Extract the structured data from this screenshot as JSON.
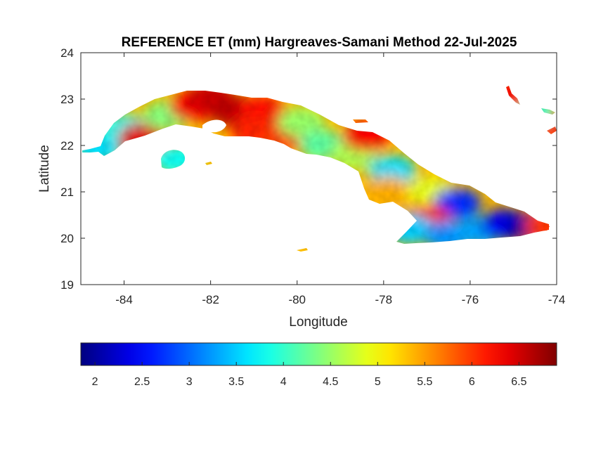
{
  "map": {
    "title": "REFERENCE ET (mm) Hargreaves-Samani Method  22-Jul-2025",
    "xlabel": "Longitude",
    "ylabel": "Latitude",
    "xlim": [
      -85,
      -74
    ],
    "ylim": [
      19,
      24
    ],
    "x_ticks": [
      {
        "value": -84,
        "label": "-84"
      },
      {
        "value": -82,
        "label": "-82"
      },
      {
        "value": -80,
        "label": "-80"
      },
      {
        "value": -78,
        "label": "-78"
      },
      {
        "value": -76,
        "label": "-76"
      },
      {
        "value": -74,
        "label": "-74"
      }
    ],
    "y_ticks": [
      {
        "value": 19,
        "label": "19"
      },
      {
        "value": 20,
        "label": "20"
      },
      {
        "value": 21,
        "label": "21"
      },
      {
        "value": 22,
        "label": "22"
      },
      {
        "value": 23,
        "label": "23"
      },
      {
        "value": 24,
        "label": "24"
      }
    ],
    "colormap": "jet",
    "colorbar": {
      "orientation": "horizontal",
      "range": [
        1.85,
        6.9
      ],
      "ticks": [
        {
          "value": 2,
          "label": "2"
        },
        {
          "value": 2.5,
          "label": "2.5"
        },
        {
          "value": 3,
          "label": "3"
        },
        {
          "value": 3.5,
          "label": "3.5"
        },
        {
          "value": 4,
          "label": "4"
        },
        {
          "value": 4.5,
          "label": "4.5"
        },
        {
          "value": 5,
          "label": "5"
        },
        {
          "value": 5.5,
          "label": "5.5"
        },
        {
          "value": 6,
          "label": "6"
        },
        {
          "value": 6.5,
          "label": "6.5"
        }
      ]
    },
    "regions": [
      {
        "id": "far-west-tip",
        "lon": -84.6,
        "lat": 21.95,
        "et": 3.6
      },
      {
        "id": "pinar-west",
        "lon": -84.0,
        "lat": 22.35,
        "et": 3.8
      },
      {
        "id": "pinar-south",
        "lon": -83.6,
        "lat": 22.15,
        "et": 6.4
      },
      {
        "id": "pinar-north",
        "lon": -83.0,
        "lat": 22.65,
        "et": 4.4
      },
      {
        "id": "artemisa",
        "lon": -82.4,
        "lat": 22.85,
        "et": 6.3
      },
      {
        "id": "havana",
        "lon": -82.0,
        "lat": 23.05,
        "et": 6.5
      },
      {
        "id": "mayabeque",
        "lon": -81.5,
        "lat": 22.75,
        "et": 6.6
      },
      {
        "id": "matanzas",
        "lon": -80.8,
        "lat": 22.75,
        "et": 6.2
      },
      {
        "id": "zapata",
        "lon": -81.0,
        "lat": 22.3,
        "et": 6.1
      },
      {
        "id": "cienfuegos",
        "lon": -80.3,
        "lat": 22.2,
        "et": 6.0
      },
      {
        "id": "villa-clara",
        "lon": -79.9,
        "lat": 22.5,
        "et": 4.5
      },
      {
        "id": "sancti-spiritus",
        "lon": -79.4,
        "lat": 22.0,
        "et": 4.2
      },
      {
        "id": "ciego-de-avila",
        "lon": -78.7,
        "lat": 21.8,
        "et": 4.6
      },
      {
        "id": "north-cays",
        "lon": -78.4,
        "lat": 22.2,
        "et": 6.3
      },
      {
        "id": "camaguey",
        "lon": -77.8,
        "lat": 21.45,
        "et": 3.6
      },
      {
        "id": "camaguey-south",
        "lon": -77.9,
        "lat": 21.0,
        "et": 5.4
      },
      {
        "id": "las-tunas",
        "lon": -76.9,
        "lat": 21.0,
        "et": 4.9
      },
      {
        "id": "holguin",
        "lon": -76.3,
        "lat": 20.75,
        "et": 2.7
      },
      {
        "id": "granma",
        "lon": -77.0,
        "lat": 20.4,
        "et": 6.1
      },
      {
        "id": "cabo-cruz",
        "lon": -77.4,
        "lat": 20.2,
        "et": 3.5
      },
      {
        "id": "sierra-maestra",
        "lon": -76.5,
        "lat": 20.05,
        "et": 3.2
      },
      {
        "id": "santiago",
        "lon": -75.8,
        "lat": 20.15,
        "et": 3.3
      },
      {
        "id": "guantanamo",
        "lon": -75.2,
        "lat": 20.3,
        "et": 2.4
      },
      {
        "id": "baracoa",
        "lon": -74.6,
        "lat": 20.25,
        "et": 2.0
      },
      {
        "id": "maisi-tip",
        "lon": -74.2,
        "lat": 20.25,
        "et": 6.0
      },
      {
        "id": "isla-juventud",
        "lon": -82.8,
        "lat": 21.7,
        "et": 3.8
      },
      {
        "id": "bahamas-east",
        "lon": -74.1,
        "lat": 22.4,
        "et": 6.0
      },
      {
        "id": "bahamas-cay-ne",
        "lon": -74.6,
        "lat": 22.75,
        "et": 4.0
      },
      {
        "id": "bahamas-cay-n",
        "lon": -75.2,
        "lat": 23.1,
        "et": 6.2
      }
    ]
  }
}
